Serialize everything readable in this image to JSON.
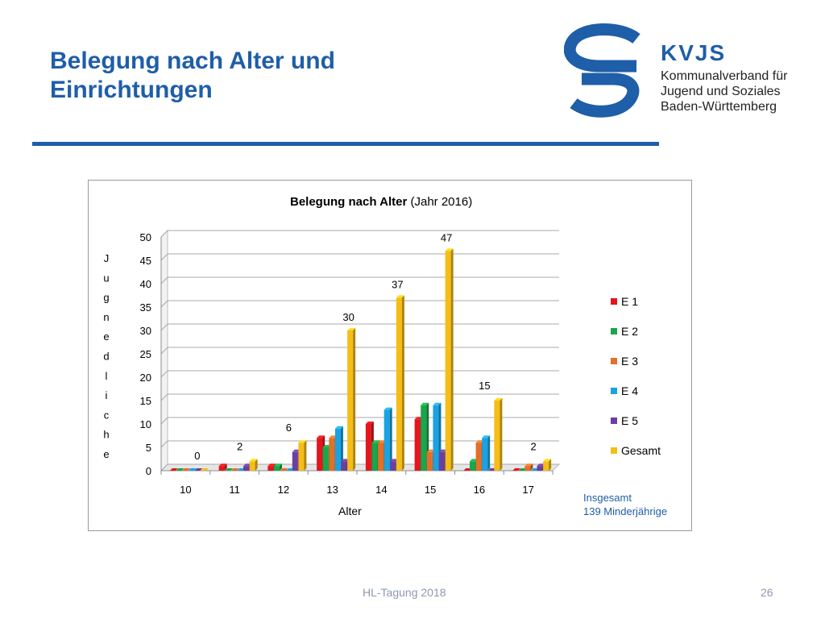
{
  "slide": {
    "title_lines": [
      "Belegung nach Alter und",
      "Einrichtungen"
    ],
    "footer_event": "HL-Tagung 2018",
    "page_number": "26"
  },
  "logo": {
    "brand": "KVJS",
    "lines": [
      "Kommunalverband für",
      "Jugend und Soziales",
      "Baden-Württemberg"
    ],
    "color": "#1f5ea8"
  },
  "note": {
    "line1": "Insgesamt",
    "line2": "139 Minderjährige",
    "color": "#1f5ea8"
  },
  "chart_data": {
    "type": "bar",
    "title_bold": "Belegung nach Alter",
    "title_rest": " (Jahr 2016)",
    "xlabel": "Alter",
    "ylabel": "Jugnedliche",
    "ylim": [
      0,
      50
    ],
    "yticks": [
      0,
      5,
      10,
      15,
      20,
      25,
      30,
      35,
      40,
      45,
      50
    ],
    "grid": true,
    "legend_position": "right",
    "categories": [
      "10",
      "11",
      "12",
      "13",
      "14",
      "15",
      "16",
      "17"
    ],
    "series": [
      {
        "name": "E 1",
        "color": "#e3161c",
        "values": [
          0,
          1,
          1,
          7,
          10,
          11,
          0,
          0
        ]
      },
      {
        "name": "E 2",
        "color": "#1aa64a",
        "values": [
          0,
          0,
          1,
          5,
          6,
          14,
          2,
          0
        ]
      },
      {
        "name": "E 3",
        "color": "#e2702a",
        "values": [
          0,
          0,
          0,
          7,
          6,
          4,
          6,
          1
        ]
      },
      {
        "name": "E 4",
        "color": "#1aa3e2",
        "values": [
          0,
          0,
          0,
          9,
          13,
          14,
          7,
          0
        ]
      },
      {
        "name": "E 5",
        "color": "#6b3fa0",
        "values": [
          0,
          1,
          4,
          2,
          2,
          4,
          0,
          1
        ]
      },
      {
        "name": "Gesamt",
        "color": "#f6bd16",
        "values": [
          0,
          2,
          6,
          30,
          37,
          47,
          15,
          2
        ]
      }
    ],
    "data_labels": {
      "series": "Gesamt",
      "values": [
        "0",
        "2",
        "6",
        "30",
        "37",
        "47",
        "15",
        "2"
      ]
    }
  }
}
